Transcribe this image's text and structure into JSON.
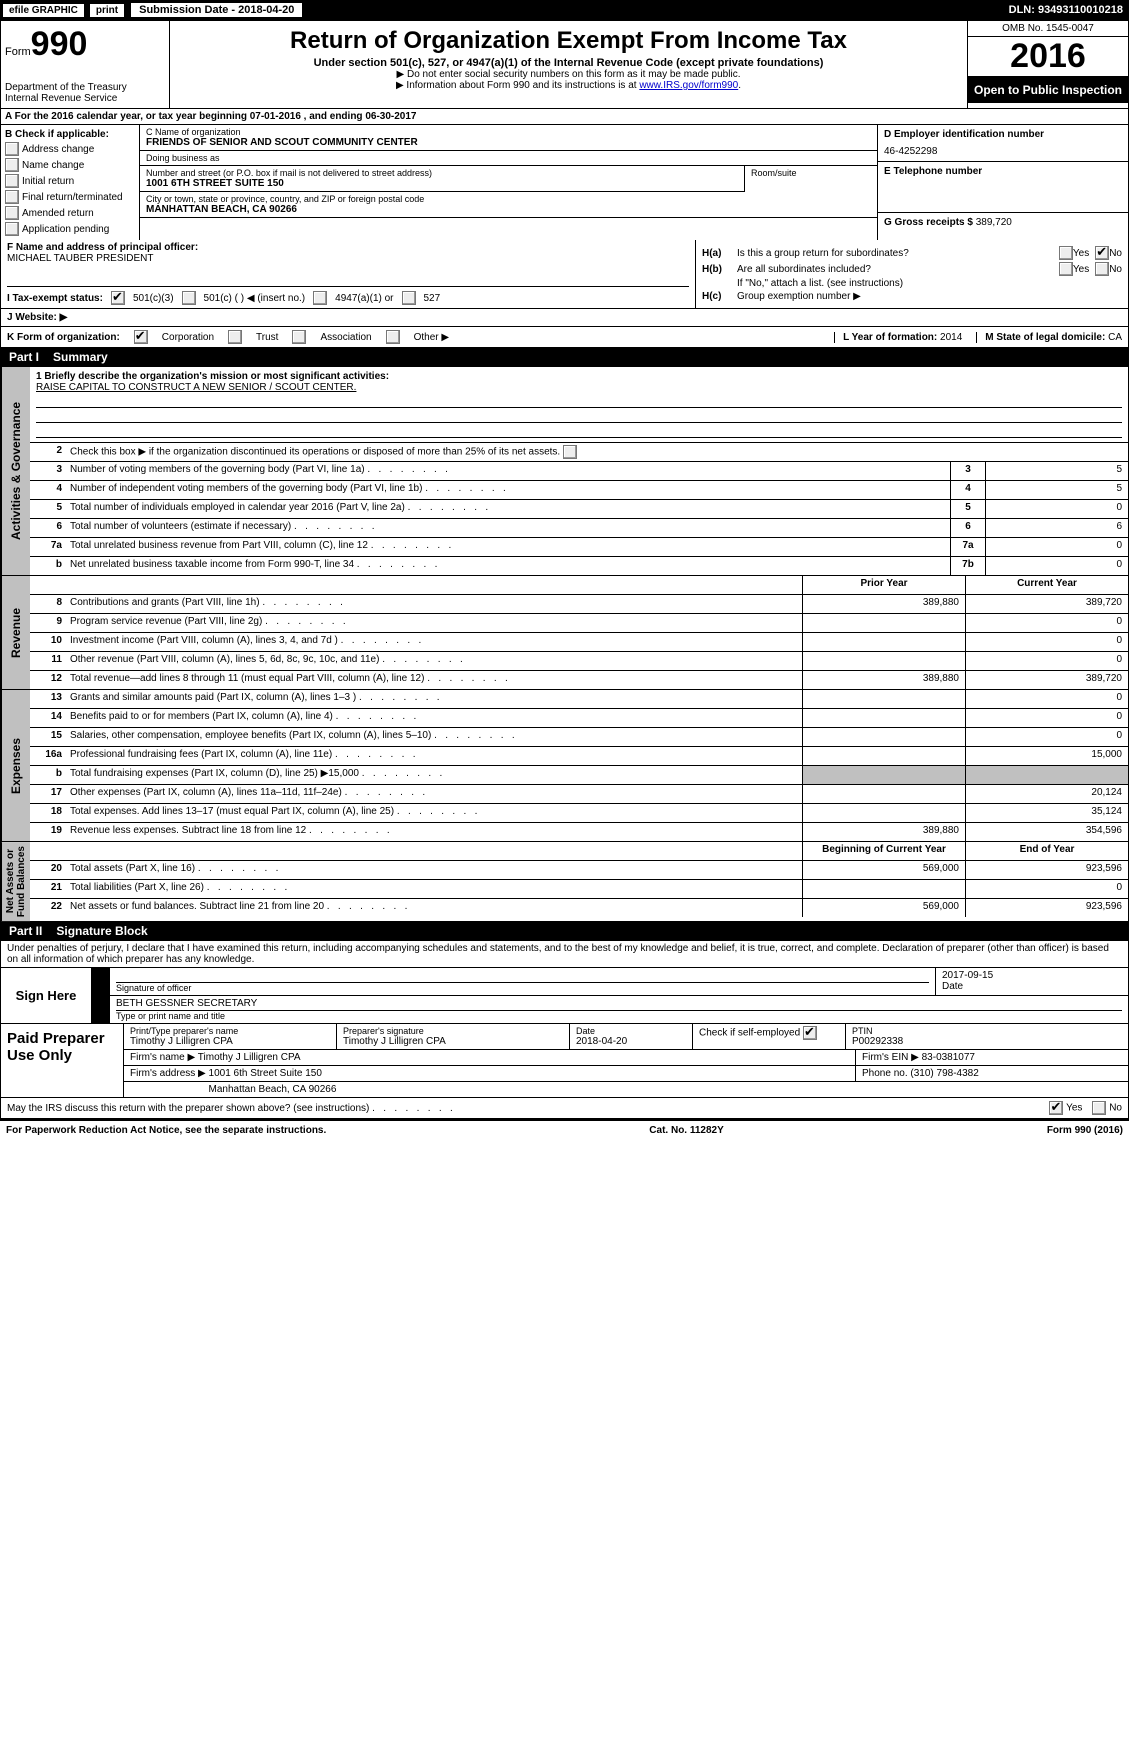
{
  "topbar": {
    "efile": "efile GRAPHIC",
    "print": "print",
    "submission_label": "Submission Date - 2018-04-20",
    "dln": "DLN: 93493110010218"
  },
  "header": {
    "form_word": "Form",
    "form_num": "990",
    "dept": "Department of the Treasury\nInternal Revenue Service",
    "title": "Return of Organization Exempt From Income Tax",
    "sub": "Under section 501(c), 527, or 4947(a)(1) of the Internal Revenue Code (except private foundations)",
    "sub2a": "▶ Do not enter social security numbers on this form as it may be made public.",
    "sub2b": "▶ Information about Form 990 and its instructions is at ",
    "irs_link": "www.IRS.gov/form990",
    "omb": "OMB No. 1545-0047",
    "year": "2016",
    "open": "Open to Public Inspection"
  },
  "row_a": "A   For the 2016 calendar year, or tax year beginning 07-01-2016     , and ending 06-30-2017",
  "col_b": {
    "label": "B Check if applicable:",
    "items": [
      "Address change",
      "Name change",
      "Initial return",
      "Final return/terminated",
      "Amended return",
      "Application pending"
    ]
  },
  "col_c": {
    "name_lab": "C Name of organization",
    "name": "FRIENDS OF SENIOR AND SCOUT COMMUNITY CENTER",
    "dba_lab": "Doing business as",
    "dba": "",
    "street_lab": "Number and street (or P.O. box if mail is not delivered to street address)",
    "street": "1001 6TH STREET SUITE 150",
    "room_lab": "Room/suite",
    "city_lab": "City or town, state or province, country, and ZIP or foreign postal code",
    "city": "MANHATTAN BEACH, CA   90266"
  },
  "col_d": {
    "ein_lab": "D Employer identification number",
    "ein": "46-4252298",
    "tel_lab": "E Telephone number",
    "tel": "",
    "gross_lab": "G Gross receipts $",
    "gross": "389,720"
  },
  "f_officer": {
    "lab": "F Name and address of principal officer:",
    "val": "MICHAEL TAUBER PRESIDENT"
  },
  "h": {
    "ha_lab": "H(a)",
    "ha_q": "Is this a group return for subordinates?",
    "hb_lab": "H(b)",
    "hb_q": "Are all subordinates included?",
    "hb_note": "If \"No,\" attach a list. (see instructions)",
    "hc_lab": "H(c)",
    "hc_q": "Group exemption number ▶",
    "yes": "Yes",
    "no": "No"
  },
  "tax_status": {
    "lab": "I    Tax-exempt status:",
    "o1": "501(c)(3)",
    "o2": "501(c) (   ) ◀ (insert no.)",
    "o3": "4947(a)(1) or",
    "o4": "527"
  },
  "website": {
    "lab": "J   Website: ▶",
    "val": ""
  },
  "k_form": {
    "lab": "K Form of organization:",
    "o1": "Corporation",
    "o2": "Trust",
    "o3": "Association",
    "o4": "Other ▶"
  },
  "l_year": {
    "lab": "L Year of formation:",
    "val": "2014"
  },
  "m_state": {
    "lab": "M State of legal domicile:",
    "val": "CA"
  },
  "part1": {
    "lab": "Part I",
    "title": "Summary"
  },
  "mission": {
    "q": "1   Briefly describe the organization's mission or most significant activities:",
    "val": "RAISE CAPITAL TO CONSTRUCT A NEW SENIOR / SCOUT CENTER."
  },
  "line2": "Check this box ▶       if the organization discontinued its operations or disposed of more than 25% of its net assets.",
  "gov_rows": [
    {
      "n": "3",
      "d": "Number of voting members of the governing body (Part VI, line 1a)",
      "bn": "3",
      "v": "5"
    },
    {
      "n": "4",
      "d": "Number of independent voting members of the governing body (Part VI, line 1b)",
      "bn": "4",
      "v": "5"
    },
    {
      "n": "5",
      "d": "Total number of individuals employed in calendar year 2016 (Part V, line 2a)",
      "bn": "5",
      "v": "0"
    },
    {
      "n": "6",
      "d": "Total number of volunteers (estimate if necessary)",
      "bn": "6",
      "v": "6"
    },
    {
      "n": "7a",
      "d": "Total unrelated business revenue from Part VIII, column (C), line 12",
      "bn": "7a",
      "v": "0"
    },
    {
      "n": "b",
      "d": "Net unrelated business taxable income from Form 990-T, line 34",
      "bn": "7b",
      "v": "0"
    }
  ],
  "pycy_head": {
    "py": "Prior Year",
    "cy": "Current Year"
  },
  "revenue_rows": [
    {
      "n": "8",
      "d": "Contributions and grants (Part VIII, line 1h)",
      "py": "389,880",
      "cy": "389,720"
    },
    {
      "n": "9",
      "d": "Program service revenue (Part VIII, line 2g)",
      "py": "",
      "cy": "0"
    },
    {
      "n": "10",
      "d": "Investment income (Part VIII, column (A), lines 3, 4, and 7d )",
      "py": "",
      "cy": "0"
    },
    {
      "n": "11",
      "d": "Other revenue (Part VIII, column (A), lines 5, 6d, 8c, 9c, 10c, and 11e)",
      "py": "",
      "cy": "0"
    },
    {
      "n": "12",
      "d": "Total revenue—add lines 8 through 11 (must equal Part VIII, column (A), line 12)",
      "py": "389,880",
      "cy": "389,720"
    }
  ],
  "expense_rows": [
    {
      "n": "13",
      "d": "Grants and similar amounts paid (Part IX, column (A), lines 1–3 )",
      "py": "",
      "cy": "0"
    },
    {
      "n": "14",
      "d": "Benefits paid to or for members (Part IX, column (A), line 4)",
      "py": "",
      "cy": "0"
    },
    {
      "n": "15",
      "d": "Salaries, other compensation, employee benefits (Part IX, column (A), lines 5–10)",
      "py": "",
      "cy": "0"
    },
    {
      "n": "16a",
      "d": "Professional fundraising fees (Part IX, column (A), line 11e)",
      "py": "",
      "cy": "15,000"
    },
    {
      "n": "b",
      "d": "Total fundraising expenses (Part IX, column (D), line 25) ▶15,000",
      "py": "SHADE",
      "cy": "SHADE"
    },
    {
      "n": "17",
      "d": "Other expenses (Part IX, column (A), lines 11a–11d, 11f–24e)",
      "py": "",
      "cy": "20,124"
    },
    {
      "n": "18",
      "d": "Total expenses. Add lines 13–17 (must equal Part IX, column (A), line 25)",
      "py": "",
      "cy": "35,124"
    },
    {
      "n": "19",
      "d": "Revenue less expenses. Subtract line 18 from line 12",
      "py": "389,880",
      "cy": "354,596"
    }
  ],
  "netassets_head": {
    "py": "Beginning of Current Year",
    "cy": "End of Year"
  },
  "netassets_rows": [
    {
      "n": "20",
      "d": "Total assets (Part X, line 16)",
      "py": "569,000",
      "cy": "923,596"
    },
    {
      "n": "21",
      "d": "Total liabilities (Part X, line 26)",
      "py": "",
      "cy": "0"
    },
    {
      "n": "22",
      "d": "Net assets or fund balances. Subtract line 21 from line 20",
      "py": "569,000",
      "cy": "923,596"
    }
  ],
  "side_labels": {
    "gov": "Activities & Governance",
    "rev": "Revenue",
    "exp": "Expenses",
    "net": "Net Assets or\nFund Balances"
  },
  "part2": {
    "lab": "Part II",
    "title": "Signature Block"
  },
  "penalty": "Under penalties of perjury, I declare that I have examined this return, including accompanying schedules and statements, and to the best of my knowledge and belief, it is true, correct, and complete. Declaration of preparer (other than officer) is based on all information of which preparer has any knowledge.",
  "sign": {
    "here": "Sign Here",
    "sig_lab": "Signature of officer",
    "date_lab": "Date",
    "date": "2017-09-15",
    "name": "BETH GESSNER  SECRETARY",
    "name_lab": "Type or print name and title"
  },
  "preparer": {
    "label": "Paid Preparer Use Only",
    "name_lab": "Print/Type preparer's name",
    "name": "Timothy J Lilligren CPA",
    "sig_lab": "Preparer's signature",
    "sig": "Timothy J Lilligren CPA",
    "date_lab": "Date",
    "date": "2018-04-20",
    "check_lab": "Check          if self-employed",
    "ptin_lab": "PTIN",
    "ptin": "P00292338",
    "firm_name_lab": "Firm's name     ▶",
    "firm_name": "Timothy J Lilligren CPA",
    "firm_ein_lab": "Firm's EIN ▶",
    "firm_ein": "83-0381077",
    "firm_addr_lab": "Firm's address ▶",
    "firm_addr": "1001 6th Street Suite 150",
    "firm_city": "Manhattan Beach, CA  90266",
    "phone_lab": "Phone no.",
    "phone": "(310) 798-4382"
  },
  "discuss": {
    "q": "May the IRS discuss this return with the preparer shown above? (see instructions)",
    "yes": "Yes",
    "no": "No"
  },
  "footer": {
    "pra": "For Paperwork Reduction Act Notice, see the separate instructions.",
    "cat": "Cat. No. 11282Y",
    "form": "Form 990 (2016)"
  }
}
